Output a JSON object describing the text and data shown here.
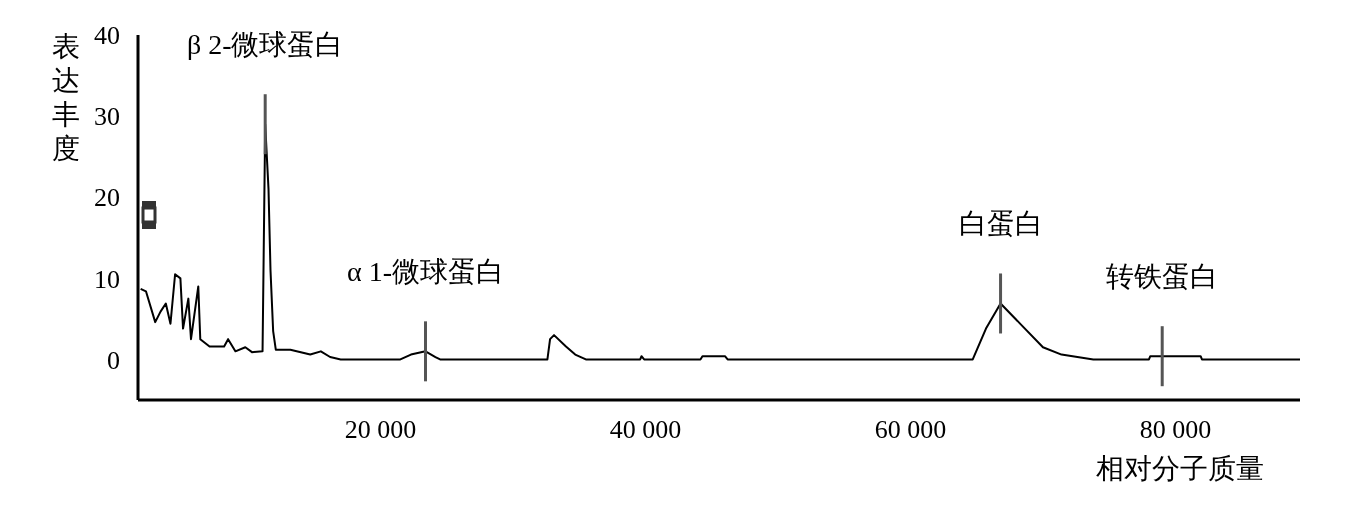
{
  "chart_data": {
    "type": "line",
    "xlabel": "相对分子质量",
    "ylabel": "表达丰度",
    "x": [
      1900,
      2300,
      3000,
      3400,
      3800,
      4150,
      4500,
      4900,
      5100,
      5500,
      5700,
      6250,
      6400,
      7100,
      8200,
      8500,
      9050,
      9800,
      10300,
      11100,
      11300,
      11550,
      11700,
      11900,
      12100,
      13200,
      14700,
      15500,
      16200,
      17000,
      21500,
      22300,
      23400,
      24150,
      24500,
      32600,
      32800,
      33100,
      34000,
      34700,
      35500,
      39600,
      39700,
      39900,
      44150,
      44300,
      46000,
      46200,
      64400,
      64700,
      65700,
      66800,
      68400,
      70000,
      71400,
      73800,
      78000,
      78100,
      81900,
      82000,
      89400
    ],
    "series": [
      {
        "color": "#000000",
        "values": [
          8.7,
          8.4,
          4.6,
          5.9,
          6.9,
          4.4,
          10.5,
          10,
          3.8,
          7.5,
          2.5,
          9,
          2.5,
          1.6,
          1.6,
          2.5,
          1,
          1.5,
          0.9,
          1,
          29,
          21,
          11,
          3.5,
          1.2,
          1.2,
          0.6,
          1,
          0.3,
          0,
          0,
          0.6,
          1,
          0.3,
          0,
          0,
          2.5,
          3,
          1.6,
          0.6,
          0,
          0,
          0.4,
          0,
          0,
          0.4,
          0.4,
          0,
          0,
          0,
          3.8,
          6.9,
          4.2,
          1.5,
          0.6,
          0,
          0,
          0.4,
          0.4,
          0,
          0
        ]
      }
    ],
    "xlim": [
      1700,
      89400
    ],
    "xticks": [
      {
        "value": 20000,
        "label": "20 000"
      },
      {
        "value": 40000,
        "label": "40 000"
      },
      {
        "value": 60000,
        "label": "60 000"
      },
      {
        "value": 80000,
        "label": "80 000"
      }
    ],
    "ylim": [
      -5,
      40
    ],
    "yticks": [
      0,
      10,
      20,
      30,
      40
    ],
    "annotations": [
      {
        "text": "β 2-微球蛋白",
        "x": 11300,
        "y": 29
      },
      {
        "text": "α 1-微球蛋白",
        "x": 23400,
        "y": 1
      },
      {
        "text": "白蛋白",
        "x": 66800,
        "y": 6.9
      },
      {
        "text": "转铁蛋白",
        "x": 79000,
        "y": 0.4
      }
    ]
  }
}
